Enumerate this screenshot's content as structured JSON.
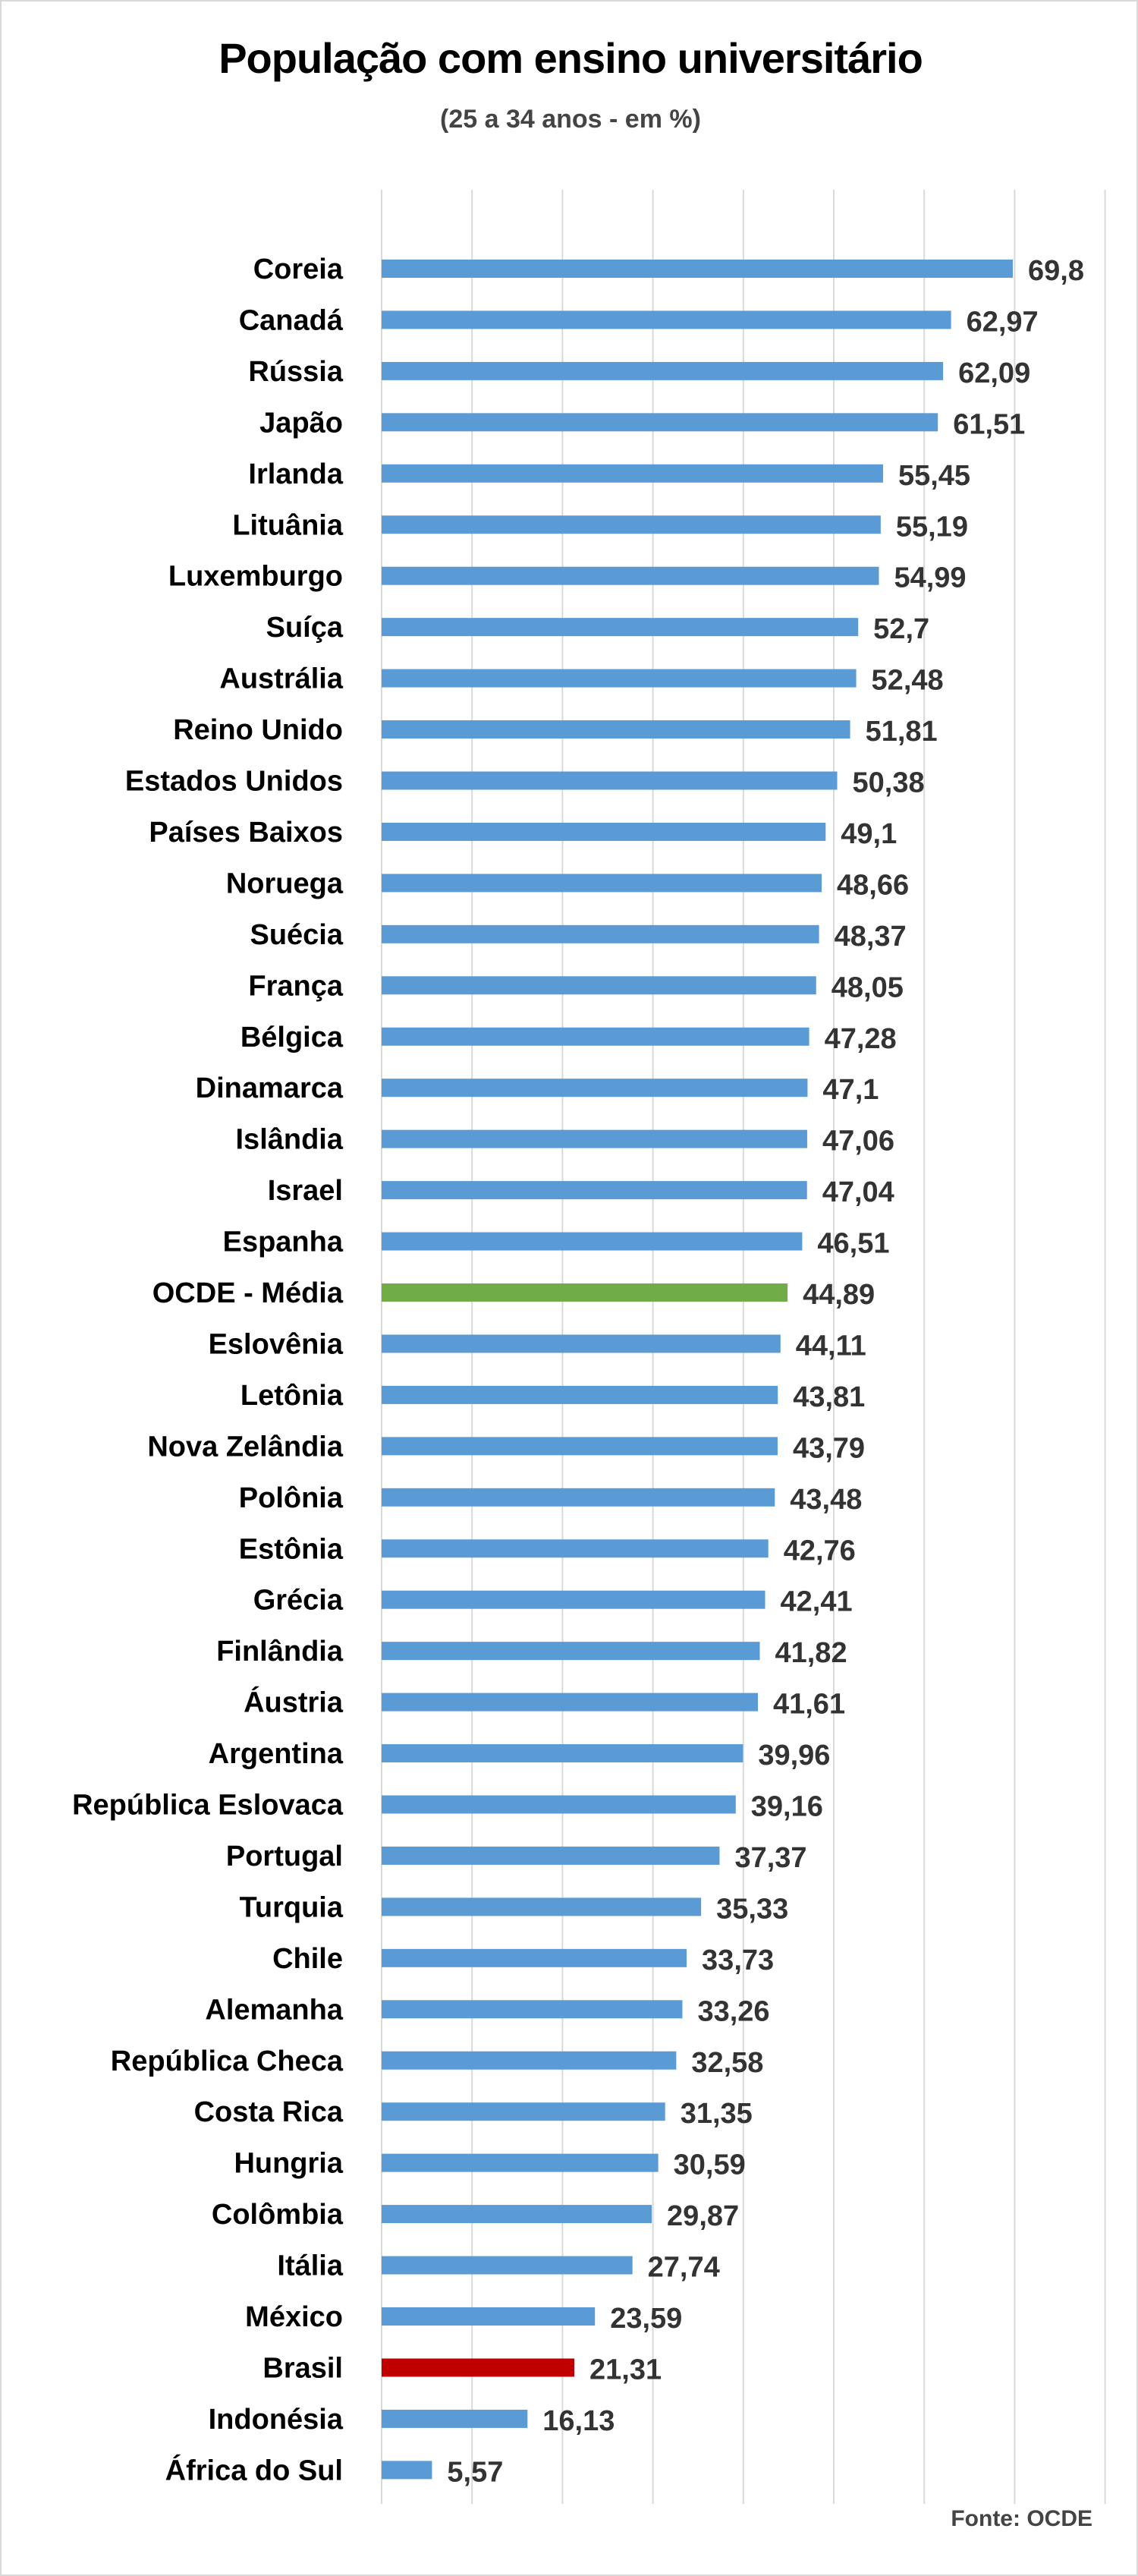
{
  "chart_data": {
    "type": "bar",
    "orientation": "horizontal",
    "title": "População com ensino universitário",
    "subtitle": "(25 a 34 anos - em %)",
    "source": "Fonte: OCDE",
    "xlim": [
      0,
      80
    ],
    "grid": "vertical every 10",
    "colors": {
      "default": "#5b9bd5",
      "highlight_average": "#70ad47",
      "highlight_brazil": "#c00000"
    },
    "categories": [
      "Coreia",
      "Canadá",
      "Rússia",
      "Japão",
      "Irlanda",
      "Lituânia",
      "Luxemburgo",
      "Suíça",
      "Austrália",
      "Reino Unido",
      "Estados Unidos",
      "Países Baixos",
      "Noruega",
      "Suécia",
      "França",
      "Bélgica",
      "Dinamarca",
      "Islândia",
      "Israel",
      "Espanha",
      "OCDE - Média",
      "Eslovênia",
      "Letônia",
      "Nova Zelândia",
      "Polônia",
      "Estônia",
      "Grécia",
      "Finlândia",
      "Áustria",
      "Argentina",
      "República Eslovaca",
      "Portugal",
      "Turquia",
      "Chile",
      "Alemanha",
      "República Checa",
      "Costa Rica",
      "Hungria",
      "Colômbia",
      "Itália",
      "México",
      "Brasil",
      "Indonésia",
      "África do Sul"
    ],
    "values": [
      69.8,
      62.97,
      62.09,
      61.51,
      55.45,
      55.19,
      54.99,
      52.7,
      52.48,
      51.81,
      50.38,
      49.1,
      48.66,
      48.37,
      48.05,
      47.28,
      47.1,
      47.06,
      47.04,
      46.51,
      44.89,
      44.11,
      43.81,
      43.79,
      43.48,
      42.76,
      42.41,
      41.82,
      41.61,
      39.96,
      39.16,
      37.37,
      35.33,
      33.73,
      33.26,
      32.58,
      31.35,
      30.59,
      29.87,
      27.74,
      23.59,
      21.31,
      16.13,
      5.57
    ],
    "data_labels": [
      "69,8",
      "62,97",
      "62,09",
      "61,51",
      "55,45",
      "55,19",
      "54,99",
      "52,7",
      "52,48",
      "51,81",
      "50,38",
      "49,1",
      "48,66",
      "48,37",
      "48,05",
      "47,28",
      "47,1",
      "47,06",
      "47,04",
      "46,51",
      "44,89",
      "44,11",
      "43,81",
      "43,79",
      "43,48",
      "42,76",
      "42,41",
      "41,82",
      "41,61",
      "39,96",
      "39,16",
      "37,37",
      "35,33",
      "33,73",
      "33,26",
      "32,58",
      "31,35",
      "30,59",
      "29,87",
      "27,74",
      "23,59",
      "21,31",
      "16,13",
      "5,57"
    ]
  }
}
